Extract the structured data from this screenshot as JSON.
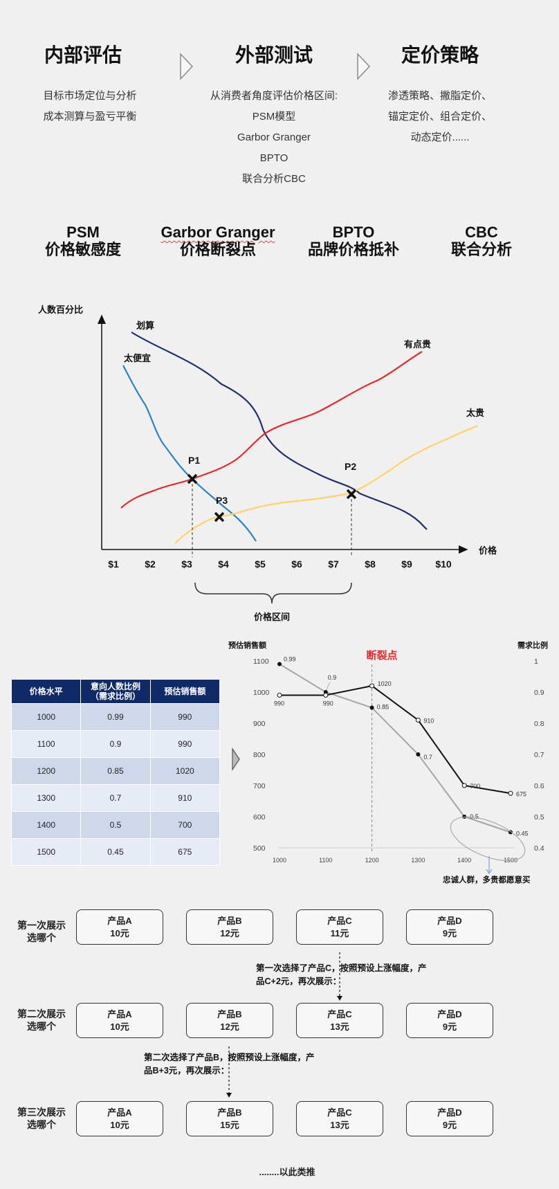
{
  "process": {
    "steps": [
      {
        "title": "内部评估",
        "lines": [
          "目标市场定位与分析",
          "成本测算与盈亏平衡"
        ]
      },
      {
        "title": "外部测试",
        "lines": [
          "从消费者角度评估价格区间:",
          "PSM模型",
          "Garbor Granger",
          "BPTO",
          "联合分析CBC"
        ]
      },
      {
        "title": "定价策略",
        "lines": [
          "渗透策略、撇脂定价、",
          "锚定定价、组合定价、",
          "动态定价......"
        ]
      }
    ]
  },
  "methods": [
    {
      "abbr": "PSM",
      "name": "价格敏感度"
    },
    {
      "abbr": "Garbor Granger",
      "name": "价格断裂点"
    },
    {
      "abbr": "BPTO",
      "name": "品牌价格抵补"
    },
    {
      "abbr": "CBC",
      "name": "联合分析"
    }
  ],
  "psm": {
    "ylabel": "人数百分比",
    "xlabel": "价格",
    "ticks": [
      "$1",
      "$2",
      "$3",
      "$4",
      "$5",
      "$6",
      "$7",
      "$8",
      "$9",
      "$10"
    ],
    "curves": [
      {
        "name": "划算",
        "color": "#1f2f6b"
      },
      {
        "name": "太便宜",
        "color": "#2a82c8"
      },
      {
        "name": "有点贵",
        "color": "#e8282a"
      },
      {
        "name": "太贵",
        "color": "#ffd36a"
      }
    ],
    "points": [
      "P1",
      "P2",
      "P3"
    ],
    "range_label": "价格区间"
  },
  "gg_table": {
    "headers": [
      "价格水平",
      "意向人数比例\n（需求比例）",
      "预估销售额"
    ],
    "rows": [
      [
        "1000",
        "0.99",
        "990"
      ],
      [
        "1100",
        "0.9",
        "990"
      ],
      [
        "1200",
        "0.85",
        "1020"
      ],
      [
        "1300",
        "0.7",
        "910"
      ],
      [
        "1400",
        "0.5",
        "700"
      ],
      [
        "1500",
        "0.45",
        "675"
      ]
    ]
  },
  "chart_data": {
    "type": "line",
    "x": [
      1000,
      1100,
      1200,
      1300,
      1400,
      1500
    ],
    "series": [
      {
        "axis": "left",
        "values": [
          990,
          990,
          1020,
          910,
          700,
          675
        ],
        "color": "#111111"
      },
      {
        "axis": "right",
        "values": [
          0.99,
          0.9,
          0.85,
          0.7,
          0.5,
          0.45
        ],
        "color": "#a6a6a6"
      }
    ],
    "ylabel_left": "预估销售额",
    "ylabel_right": "需求比例",
    "yticks_left": [
      1100,
      1000,
      900,
      800,
      700,
      600,
      500
    ],
    "yticks_right": [
      1,
      0.9,
      0.8,
      0.7,
      0.6,
      0.5,
      0.4
    ],
    "ylim_left": [
      500,
      1100
    ],
    "ylim_right": [
      0.4,
      1
    ],
    "break_label": "断裂点",
    "callout": "忠诚人群，多贵都愿意买"
  },
  "bpto": {
    "rows": [
      {
        "label": "第一次展示\n选哪个",
        "products": [
          {
            "name": "产品A",
            "price": "10元"
          },
          {
            "name": "产品B",
            "price": "12元"
          },
          {
            "name": "产品C",
            "price": "11元"
          },
          {
            "name": "产品D",
            "price": "9元"
          }
        ]
      },
      {
        "label": "第二次展示\n选哪个",
        "products": [
          {
            "name": "产品A",
            "price": "10元"
          },
          {
            "name": "产品B",
            "price": "12元"
          },
          {
            "name": "产品C",
            "price": "13元"
          },
          {
            "name": "产品D",
            "price": "9元"
          }
        ]
      },
      {
        "label": "第三次展示\n选哪个",
        "products": [
          {
            "name": "产品A",
            "price": "10元"
          },
          {
            "name": "产品B",
            "price": "15元"
          },
          {
            "name": "产品C",
            "price": "13元"
          },
          {
            "name": "产品D",
            "price": "9元"
          }
        ]
      }
    ],
    "note1": "第一次选择了产品C，按照预设上涨幅度，产\n品C+2元，再次展示：",
    "note2": "第二次选择了产品B，按照预设上涨幅度，产\n品B+3元，再次展示：",
    "footer": "........以此类推"
  },
  "icons": {
    "arrow": "chevron-right-icon",
    "cross": "x-mark-icon"
  }
}
